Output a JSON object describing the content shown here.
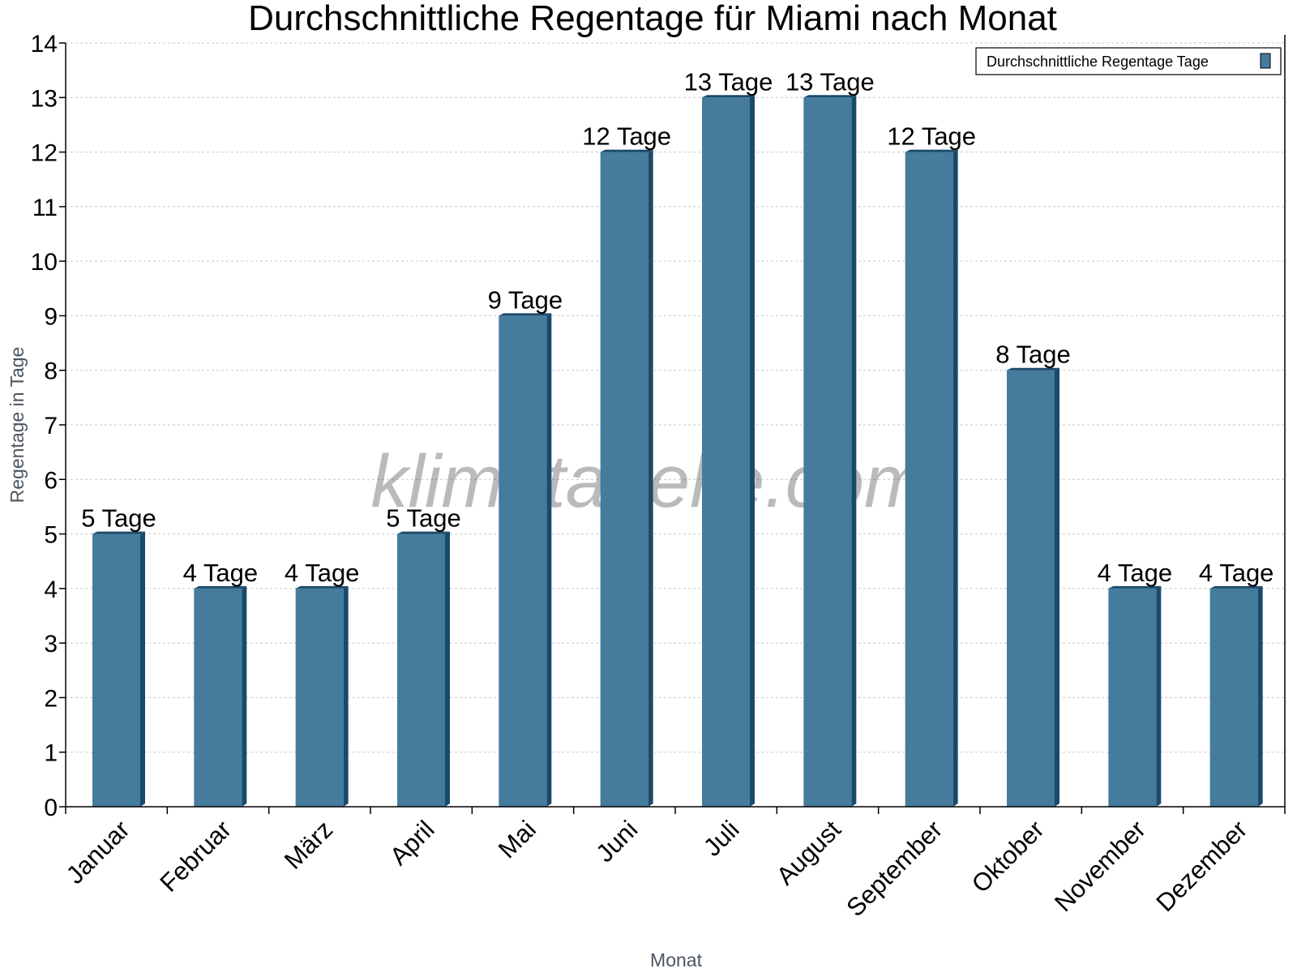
{
  "chart_data": {
    "type": "bar",
    "title": "Durchschnittliche Regentage für Miami nach Monat",
    "xlabel": "Monat",
    "ylabel": "Regentage in Tage",
    "categories": [
      "Januar",
      "Februar",
      "März",
      "April",
      "Mai",
      "Juni",
      "Juli",
      "August",
      "September",
      "Oktober",
      "November",
      "Dezember"
    ],
    "series": [
      {
        "name": "Durchschnittliche Regentage Tage",
        "values": [
          5,
          4,
          4,
          5,
          9,
          12,
          13,
          13,
          12,
          8,
          4,
          4
        ],
        "color": "#457b9d",
        "side_color": "#1a4a6b"
      }
    ],
    "data_labels": [
      "5 Tage",
      "4 Tage",
      "4 Tage",
      "5 Tage",
      "9 Tage",
      "12 Tage",
      "13 Tage",
      "13 Tage",
      "12 Tage",
      "8 Tage",
      "4 Tage",
      "4 Tage"
    ],
    "ylim": [
      0,
      14
    ],
    "yticks": [
      0,
      1,
      2,
      3,
      4,
      5,
      6,
      7,
      8,
      9,
      10,
      11,
      12,
      13,
      14
    ],
    "grid": true,
    "legend_position": "top-right",
    "watermark": "klimatabelle.com"
  }
}
